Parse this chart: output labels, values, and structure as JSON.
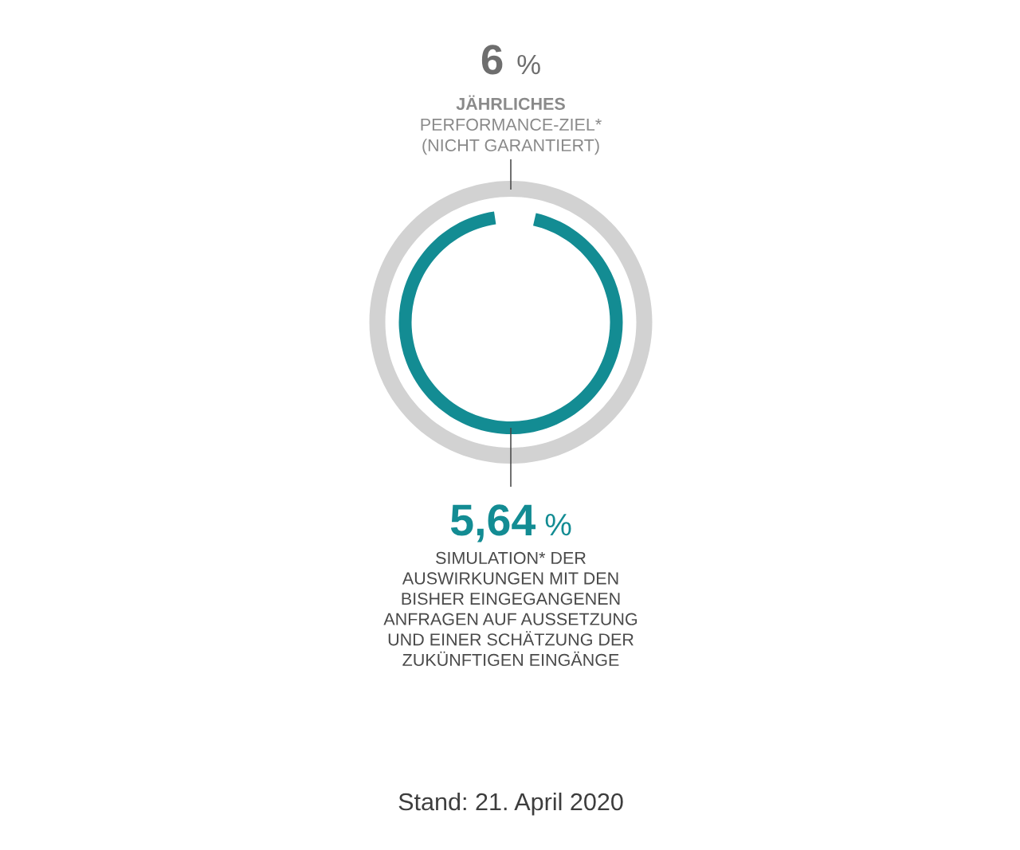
{
  "chart_data": {
    "type": "other",
    "categories": [
      "JÄHRLICHES\nPERFORMANCE-ZIEL*\n(NICHT GARANTIERT)",
      "SIMULATION* DER\nAUSWIRKUNGEN MIT DEN\nBISHER EINGEGANGENEN\nANFRAGEN AUF AUSSETZUNG\nUND EINER SCHÄTZUNG DER\nZUKÜNFTIGEN EINGÄNGE"
    ],
    "values": [
      6,
      5.64
    ],
    "value_labels": [
      "6 %",
      "5,64 %"
    ],
    "colors": [
      "#d2d2d2",
      "#138c93"
    ],
    "annotations": [
      "Stand: 21. April 2020"
    ]
  }
}
